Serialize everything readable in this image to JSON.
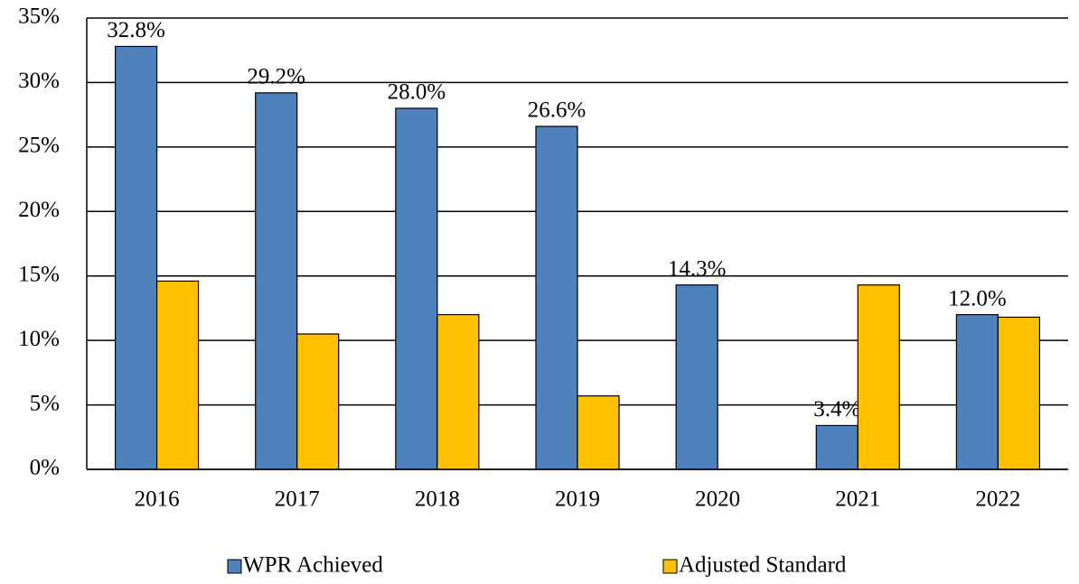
{
  "chart_data": {
    "type": "bar",
    "categories": [
      "2016",
      "2017",
      "2018",
      "2019",
      "2020",
      "2021",
      "2022"
    ],
    "series": [
      {
        "name": "WPR Achieved",
        "color": "#4f81bd",
        "values": [
          32.8,
          29.2,
          28.0,
          26.6,
          14.3,
          3.4,
          12.0
        ],
        "value_labels": [
          "32.8%",
          "29.2%",
          "28.0%",
          "26.6%",
          "14.3%",
          "3.4%",
          "12.0%"
        ]
      },
      {
        "name": "Adjusted Standard",
        "color": "#ffc000",
        "values": [
          14.6,
          10.5,
          12.0,
          5.7,
          null,
          14.3,
          11.8
        ]
      }
    ],
    "ylim": [
      0,
      35
    ],
    "yticks": [
      {
        "value": 0,
        "label": "0%"
      },
      {
        "value": 5,
        "label": "5%"
      },
      {
        "value": 10,
        "label": "10%"
      },
      {
        "value": 15,
        "label": "15%"
      },
      {
        "value": 20,
        "label": "20%"
      },
      {
        "value": 25,
        "label": "25%"
      },
      {
        "value": 30,
        "label": "30%"
      },
      {
        "value": 35,
        "label": "35%"
      }
    ],
    "grid": true,
    "legend": "bottom"
  }
}
